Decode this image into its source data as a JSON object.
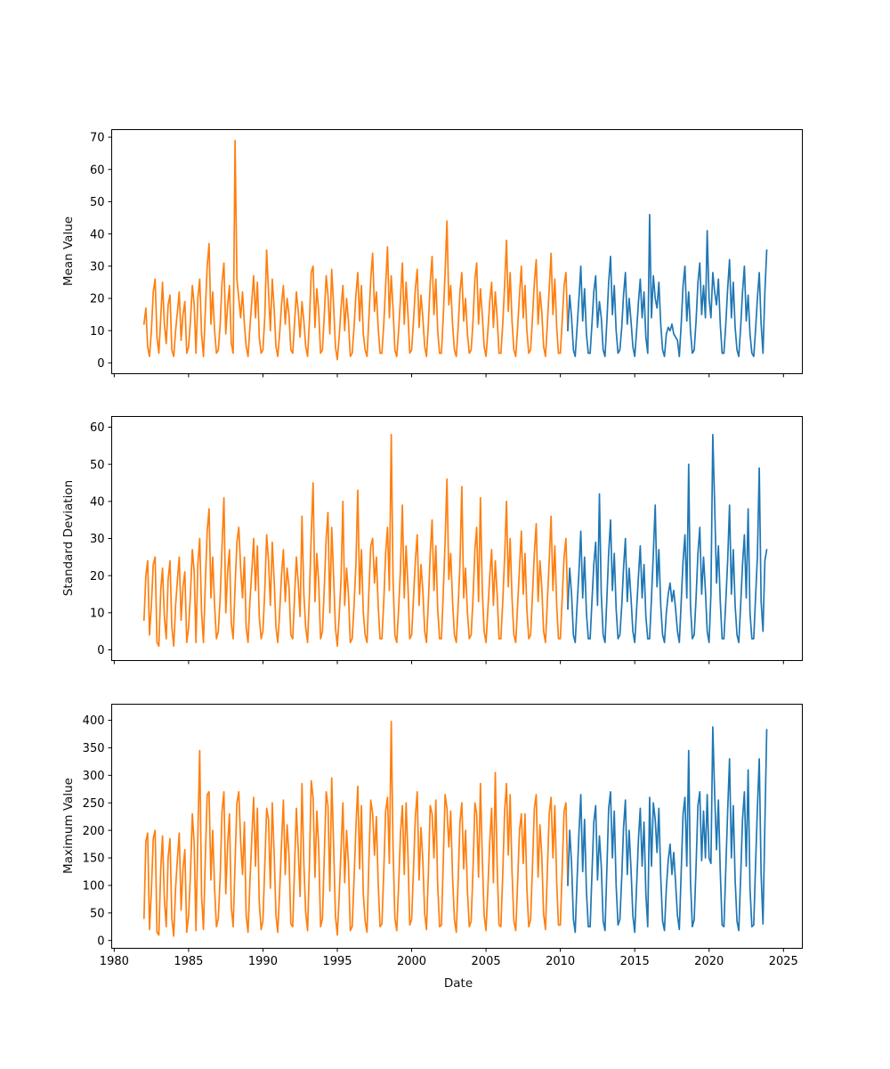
{
  "figure": {
    "background": "#ffffff",
    "text_color": "#000000",
    "spine_color": "#000000"
  },
  "chart_data": [
    {
      "type": "line",
      "title": "",
      "ylabel": "Mean Value",
      "xlabel": "",
      "ylim": [
        -3.5,
        72.5
      ],
      "yticks": [
        0,
        10,
        20,
        30,
        40,
        50,
        60,
        70
      ],
      "xlim": [
        1979.8,
        2026.3
      ],
      "xticks": [
        1980,
        1985,
        1990,
        1995,
        2000,
        2005,
        2010,
        2015,
        2020,
        2025
      ],
      "show_xtick_labels": false,
      "x_start": 1982.0,
      "x_step": 0.125,
      "split_index": 228,
      "color_before": "#ff7f0e",
      "color_after": "#1f77b4",
      "values": [
        12,
        17,
        5,
        2,
        10,
        22,
        26,
        8,
        3,
        14,
        25,
        12,
        6,
        18,
        21,
        4,
        2,
        10,
        16,
        22,
        7,
        15,
        19,
        3,
        5,
        13,
        24,
        18,
        3,
        20,
        26,
        9,
        2,
        16,
        30,
        37,
        12,
        22,
        10,
        3,
        4,
        12,
        25,
        31,
        9,
        18,
        24,
        6,
        3,
        69,
        26,
        20,
        14,
        22,
        12,
        5,
        2,
        11,
        19,
        27,
        14,
        25,
        8,
        3,
        4,
        14,
        35,
        22,
        10,
        26,
        17,
        5,
        2,
        9,
        18,
        24,
        12,
        20,
        15,
        4,
        3,
        12,
        22,
        16,
        8,
        19,
        13,
        5,
        2,
        13,
        28,
        30,
        11,
        23,
        16,
        3,
        4,
        15,
        27,
        21,
        9,
        29,
        18,
        5,
        1,
        8,
        17,
        24,
        10,
        20,
        13,
        2,
        3,
        11,
        21,
        28,
        13,
        24,
        9,
        4,
        2,
        14,
        26,
        34,
        16,
        22,
        11,
        3,
        3,
        12,
        24,
        36,
        14,
        27,
        17,
        4,
        2,
        10,
        20,
        31,
        12,
        25,
        15,
        3,
        4,
        13,
        23,
        29,
        11,
        21,
        14,
        5,
        2,
        12,
        25,
        33,
        15,
        26,
        10,
        3,
        3,
        14,
        28,
        44,
        18,
        24,
        12,
        4,
        2,
        11,
        22,
        28,
        13,
        20,
        9,
        3,
        4,
        13,
        26,
        31,
        12,
        23,
        15,
        5,
        2,
        10,
        19,
        25,
        11,
        22,
        14,
        3,
        3,
        12,
        24,
        38,
        16,
        28,
        13,
        4,
        2,
        11,
        21,
        30,
        14,
        24,
        10,
        3,
        4,
        14,
        25,
        32,
        12,
        22,
        16,
        5,
        2,
        12,
        23,
        34,
        15,
        26,
        11,
        3,
        3,
        13,
        24,
        28,
        10,
        21,
        14,
        4,
        2,
        11,
        20,
        30,
        13,
        23,
        9,
        3,
        3,
        12,
        22,
        27,
        11,
        19,
        14,
        4,
        2,
        13,
        25,
        33,
        15,
        24,
        10,
        3,
        4,
        11,
        21,
        28,
        12,
        20,
        13,
        5,
        2,
        10,
        19,
        26,
        14,
        22,
        8,
        3,
        46,
        14,
        27,
        20,
        17,
        25,
        12,
        4,
        2,
        9,
        11,
        10,
        12,
        9,
        8,
        7,
        2,
        12,
        24,
        30,
        13,
        22,
        10,
        3,
        4,
        13,
        25,
        31,
        15,
        24,
        14,
        41,
        20,
        14,
        28,
        22,
        18,
        26,
        12,
        3,
        3,
        12,
        23,
        32,
        14,
        25,
        11,
        4,
        2,
        11,
        22,
        30,
        13,
        21,
        9,
        3,
        2,
        10,
        20,
        28,
        12,
        3,
        22,
        35
      ]
    },
    {
      "type": "line",
      "title": "",
      "ylabel": "Standard Deviation",
      "xlabel": "",
      "ylim": [
        -3,
        63
      ],
      "yticks": [
        0,
        10,
        20,
        30,
        40,
        50,
        60
      ],
      "xlim": [
        1979.8,
        2026.3
      ],
      "xticks": [
        1980,
        1985,
        1990,
        1995,
        2000,
        2005,
        2010,
        2015,
        2020,
        2025
      ],
      "show_xtick_labels": false,
      "x_start": 1982.0,
      "x_step": 0.125,
      "split_index": 228,
      "color_before": "#ff7f0e",
      "color_after": "#1f77b4",
      "values": [
        8,
        20,
        24,
        4,
        12,
        23,
        25,
        2,
        1,
        16,
        22,
        9,
        3,
        19,
        24,
        6,
        1,
        12,
        19,
        25,
        8,
        17,
        21,
        2,
        6,
        15,
        27,
        21,
        2,
        23,
        30,
        10,
        2,
        18,
        32,
        38,
        14,
        25,
        12,
        3,
        5,
        14,
        28,
        41,
        10,
        21,
        27,
        7,
        3,
        17,
        29,
        33,
        22,
        14,
        25,
        6,
        2,
        13,
        21,
        30,
        16,
        28,
        9,
        3,
        5,
        16,
        31,
        24,
        12,
        29,
        19,
        6,
        2,
        10,
        20,
        27,
        13,
        22,
        17,
        4,
        3,
        14,
        25,
        18,
        9,
        36,
        15,
        6,
        2,
        15,
        31,
        45,
        13,
        26,
        18,
        3,
        5,
        17,
        30,
        37,
        10,
        33,
        20,
        6,
        1,
        9,
        19,
        40,
        12,
        22,
        15,
        2,
        3,
        12,
        23,
        43,
        15,
        27,
        10,
        4,
        2,
        16,
        28,
        30,
        18,
        25,
        12,
        3,
        3,
        13,
        26,
        33,
        16,
        58,
        19,
        4,
        2,
        11,
        22,
        39,
        14,
        28,
        17,
        3,
        4,
        14,
        24,
        31,
        12,
        23,
        16,
        5,
        2,
        13,
        26,
        35,
        16,
        28,
        11,
        3,
        3,
        15,
        29,
        46,
        19,
        26,
        13,
        4,
        2,
        12,
        23,
        44,
        14,
        22,
        10,
        3,
        4,
        14,
        27,
        33,
        13,
        41,
        16,
        5,
        2,
        11,
        20,
        27,
        12,
        24,
        15,
        3,
        3,
        13,
        25,
        40,
        17,
        30,
        14,
        4,
        2,
        12,
        22,
        32,
        15,
        26,
        11,
        3,
        4,
        15,
        26,
        34,
        13,
        24,
        17,
        5,
        2,
        13,
        24,
        36,
        16,
        28,
        12,
        3,
        3,
        14,
        25,
        30,
        11,
        22,
        15,
        4,
        2,
        12,
        21,
        32,
        14,
        25,
        10,
        3,
        3,
        13,
        23,
        29,
        12,
        42,
        15,
        4,
        2,
        14,
        26,
        35,
        16,
        26,
        11,
        3,
        4,
        12,
        22,
        30,
        13,
        22,
        14,
        5,
        2,
        11,
        20,
        28,
        14,
        23,
        9,
        3,
        3,
        14,
        26,
        39,
        17,
        27,
        12,
        4,
        2,
        10,
        15,
        18,
        13,
        16,
        11,
        5,
        2,
        13,
        24,
        31,
        14,
        50,
        12,
        3,
        4,
        14,
        26,
        33,
        15,
        25,
        16,
        5,
        2,
        15,
        58,
        39,
        18,
        28,
        13,
        3,
        3,
        13,
        24,
        39,
        15,
        27,
        12,
        4,
        2,
        12,
        23,
        31,
        14,
        38,
        10,
        3,
        3,
        14,
        25,
        49,
        13,
        5,
        24,
        27
      ]
    },
    {
      "type": "line",
      "title": "",
      "ylabel": "Maximum Value",
      "xlabel": "Date",
      "ylim": [
        -15,
        430
      ],
      "yticks": [
        0,
        50,
        100,
        150,
        200,
        250,
        300,
        350,
        400
      ],
      "xlim": [
        1979.8,
        2026.3
      ],
      "xticks": [
        1980,
        1985,
        1990,
        1995,
        2000,
        2005,
        2010,
        2015,
        2020,
        2025
      ],
      "show_xtick_labels": true,
      "x_start": 1982.0,
      "x_step": 0.125,
      "split_index": 228,
      "color_before": "#ff7f0e",
      "color_after": "#1f77b4",
      "values": [
        40,
        180,
        195,
        20,
        90,
        185,
        200,
        15,
        10,
        130,
        190,
        75,
        25,
        150,
        185,
        40,
        8,
        95,
        150,
        195,
        55,
        130,
        165,
        15,
        45,
        120,
        230,
        175,
        18,
        190,
        345,
        80,
        20,
        150,
        265,
        270,
        110,
        200,
        95,
        25,
        40,
        115,
        235,
        270,
        85,
        175,
        230,
        60,
        25,
        140,
        250,
        270,
        180,
        120,
        215,
        45,
        15,
        105,
        185,
        260,
        135,
        240,
        70,
        20,
        35,
        135,
        240,
        220,
        95,
        250,
        160,
        45,
        15,
        90,
        175,
        255,
        120,
        210,
        155,
        30,
        25,
        130,
        240,
        165,
        80,
        285,
        140,
        50,
        18,
        140,
        290,
        260,
        115,
        235,
        170,
        25,
        40,
        155,
        270,
        245,
        90,
        295,
        175,
        45,
        10,
        80,
        165,
        250,
        105,
        200,
        140,
        18,
        25,
        110,
        205,
        280,
        130,
        245,
        85,
        35,
        15,
        145,
        255,
        230,
        155,
        225,
        105,
        25,
        30,
        125,
        235,
        260,
        140,
        398,
        170,
        40,
        18,
        100,
        195,
        245,
        120,
        250,
        155,
        28,
        38,
        130,
        225,
        270,
        110,
        205,
        145,
        48,
        20,
        120,
        245,
        230,
        150,
        255,
        100,
        25,
        28,
        140,
        265,
        240,
        170,
        235,
        115,
        38,
        15,
        110,
        215,
        250,
        130,
        200,
        90,
        25,
        35,
        130,
        250,
        230,
        115,
        285,
        150,
        45,
        18,
        95,
        180,
        240,
        105,
        305,
        135,
        28,
        25,
        120,
        235,
        285,
        155,
        265,
        125,
        35,
        18,
        105,
        200,
        230,
        140,
        230,
        95,
        25,
        38,
        135,
        240,
        265,
        115,
        210,
        155,
        48,
        20,
        125,
        230,
        260,
        150,
        245,
        105,
        28,
        28,
        130,
        235,
        250,
        100,
        200,
        140,
        38,
        15,
        110,
        195,
        265,
        125,
        220,
        90,
        25,
        25,
        120,
        215,
        245,
        110,
        190,
        135,
        35,
        18,
        130,
        240,
        270,
        150,
        235,
        100,
        28,
        38,
        115,
        205,
        255,
        120,
        200,
        130,
        45,
        15,
        100,
        185,
        240,
        135,
        215,
        85,
        25,
        260,
        135,
        250,
        220,
        160,
        240,
        115,
        35,
        18,
        95,
        145,
        175,
        120,
        160,
        105,
        45,
        20,
        125,
        230,
        260,
        135,
        345,
        110,
        25,
        38,
        135,
        245,
        270,
        145,
        235,
        150,
        265,
        150,
        140,
        388,
        265,
        165,
        255,
        125,
        28,
        25,
        130,
        235,
        330,
        150,
        245,
        110,
        35,
        18,
        115,
        220,
        270,
        135,
        310,
        95,
        25,
        28,
        135,
        240,
        330,
        120,
        30,
        210,
        383
      ]
    }
  ]
}
